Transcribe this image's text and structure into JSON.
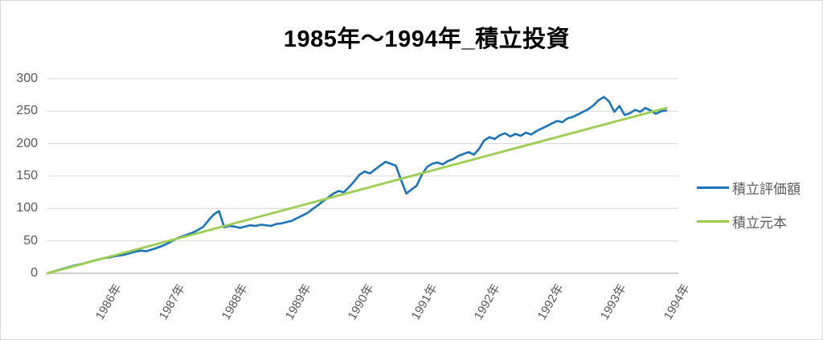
{
  "title": "1985年～1994年_積立投資",
  "colors": {
    "valuation_line": "#1B73B9",
    "principal_line": "#9BCD50",
    "gridline": "#D9D9D9",
    "axis_line": "#BFBFBF",
    "label_text": "#595959",
    "title_text": "#000000"
  },
  "axes": {
    "y_tick_labels": [
      "0",
      "50",
      "100",
      "150",
      "200",
      "250",
      "300"
    ],
    "x_tick_labels": [
      "1986年",
      "1987年",
      "1988年",
      "1989年",
      "1990年",
      "1991年",
      "1992年",
      "1992年",
      "1993年",
      "1994年"
    ]
  },
  "chart_data": {
    "type": "line",
    "title": "1985年～1994年_積立投資",
    "xlabel": "",
    "ylabel": "",
    "ylim": [
      0,
      300
    ],
    "y_ticks": [
      0,
      50,
      100,
      150,
      200,
      250,
      300
    ],
    "x_tick_labels": [
      "1986年",
      "1987年",
      "1988年",
      "1989年",
      "1990年",
      "1991年",
      "1992年",
      "1992年",
      "1993年",
      "1994年"
    ],
    "x_unit": "month",
    "x_span": "1985-01 to 1994-12",
    "grid": "horizontal",
    "legend_position": "right",
    "series": [
      {
        "name": "積立評価額",
        "color": "#1B73B9",
        "values": [
          0,
          2.5,
          4.6,
          7.0,
          9.3,
          11.6,
          13.4,
          15.0,
          17.5,
          19.6,
          21.7,
          23.5,
          24.5,
          26.5,
          27.5,
          29.0,
          31.5,
          33.5,
          35.0,
          34.0,
          36.5,
          39.0,
          42.0,
          45.5,
          50,
          54,
          57,
          60,
          63,
          67,
          72,
          82,
          91,
          96,
          71,
          73,
          72,
          70,
          72,
          74,
          73,
          75,
          74,
          73,
          76,
          77,
          79,
          81,
          85,
          89,
          93,
          99,
          105,
          111,
          117,
          123,
          127,
          125,
          133,
          142,
          152,
          157,
          154,
          160,
          166,
          172,
          169,
          166,
          144,
          123,
          129,
          135,
          152,
          164,
          169,
          171,
          168,
          173,
          176,
          181,
          184,
          187,
          183,
          192,
          205,
          210,
          207,
          213,
          216,
          211,
          215,
          212,
          217,
          214,
          219,
          223,
          227,
          231,
          235,
          233,
          239,
          241,
          245,
          249,
          253,
          259,
          267,
          272,
          265,
          249,
          258,
          244,
          247,
          252,
          249,
          255,
          251,
          246,
          250,
          251
        ]
      },
      {
        "name": "積立元本",
        "color": "#9BCD50",
        "shape": "linear",
        "values": [
          0,
          255
        ]
      }
    ]
  }
}
